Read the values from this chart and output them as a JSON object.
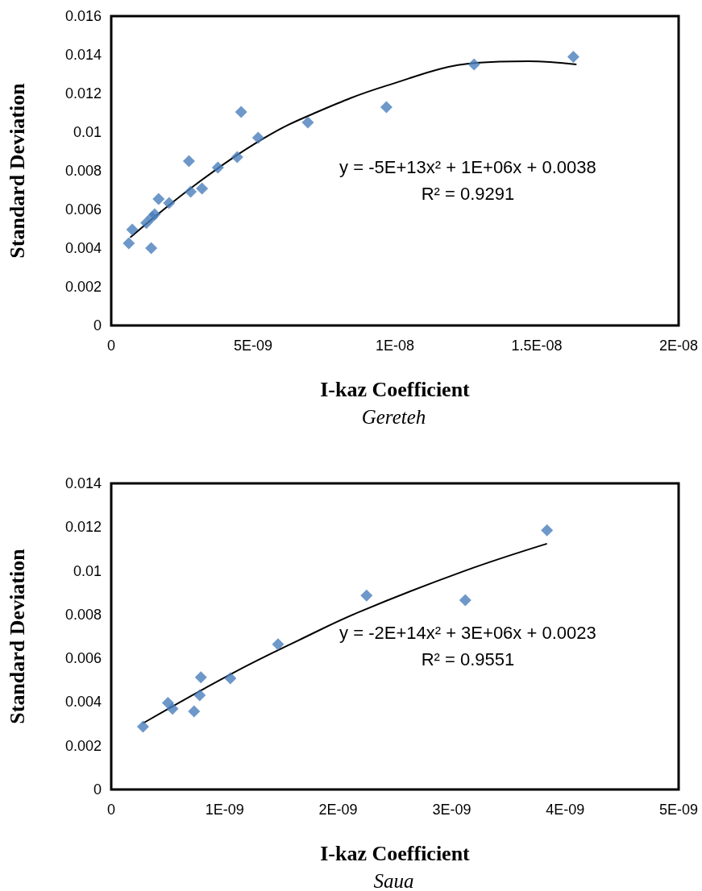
{
  "chart_data": [
    {
      "type": "scatter",
      "xlabel": "I-kaz Coefficient",
      "ylabel": "Standard Deviation",
      "subtitle": "Gereteh",
      "marker": "diamond",
      "grid": false,
      "annotations": [
        "y = -5E+13x² + 1E+06x + 0.0038",
        "R² = 0.9291"
      ],
      "xlim": [
        0,
        2e-08
      ],
      "xticks": [
        0,
        {
          "value": 5e-09,
          "label": "5E-09"
        },
        {
          "value": 1e-08,
          "label": "1E-08"
        },
        {
          "value": 1.5e-08,
          "label": "1.5E-08"
        },
        {
          "value": 2e-08,
          "label": "2E-08"
        }
      ],
      "ylim": [
        0,
        0.016
      ],
      "yticks": [
        0,
        0.002,
        0.004,
        0.006,
        0.008,
        0.01,
        0.012,
        0.014,
        0.016
      ],
      "series": [
        {
          "color": "#4a7ebb",
          "x": [
            6.2e-10,
            7.4e-10,
            1.24e-09,
            1.44e-09,
            1.53e-09,
            1.41e-09,
            1.67e-09,
            2.04e-09,
            2.74e-09,
            2.8e-09,
            3.2e-09,
            3.76e-09,
            4.44e-09,
            4.58e-09,
            5.18e-09,
            6.93e-09,
            9.7e-09,
            1.279e-08,
            1.629e-08
          ],
          "values": [
            0.00425,
            0.00496,
            0.0053,
            0.0056,
            0.00575,
            0.004,
            0.00654,
            0.00633,
            0.0085,
            0.00692,
            0.00708,
            0.00817,
            0.00871,
            0.01104,
            0.00971,
            0.0105,
            0.01129,
            0.0135,
            0.0139
          ]
        },
        {
          "type": "line",
          "marker": "none",
          "color": "#000000",
          "x": [
            6.7e-10,
            2.96e-09,
            5.4e-09,
            7.13e-09,
            9.7e-09,
            1.287e-08,
            1.47e-08,
            1.64e-08
          ],
          "values": [
            0.00455,
            0.00727,
            0.0097,
            0.01096,
            0.0124,
            0.01358,
            0.01367,
            0.0135
          ]
        }
      ]
    },
    {
      "type": "scatter",
      "xlabel": "I-kaz Coefficient",
      "ylabel": "Standard Deviation",
      "subtitle": "Saua",
      "marker": "diamond",
      "grid": false,
      "annotations": [
        "y = -2E+14x² + 3E+06x + 0.0023",
        "R² = 0.9551"
      ],
      "xlim": [
        0,
        5e-09
      ],
      "xticks": [
        0,
        {
          "value": 1e-09,
          "label": "1E-09"
        },
        {
          "value": 2e-09,
          "label": "2E-09"
        },
        {
          "value": 3e-09,
          "label": "3E-09"
        },
        {
          "value": 4e-09,
          "label": "4E-09"
        },
        {
          "value": 5e-09,
          "label": "5E-09"
        }
      ],
      "ylim": [
        0,
        0.014
      ],
      "yticks": [
        0,
        0.002,
        0.004,
        0.006,
        0.008,
        0.01,
        0.012,
        0.014
      ],
      "series": [
        {
          "color": "#4a7ebb",
          "x": [
            2.8e-10,
            5e-10,
            5.4e-10,
            7.3e-10,
            7.8e-10,
            7.9e-10,
            1.05e-09,
            1.47e-09,
            2.25e-09,
            3.12e-09,
            3.84e-09
          ],
          "values": [
            0.00287,
            0.00396,
            0.00369,
            0.00357,
            0.00431,
            0.00513,
            0.00508,
            0.00664,
            0.00887,
            0.00866,
            0.01185
          ]
        },
        {
          "type": "line",
          "marker": "none",
          "color": "#000000",
          "x": [
            2.8e-10,
            1.07e-09,
            1.65e-09,
            2.19e-09,
            3.1e-09,
            3.84e-09
          ],
          "values": [
            0.00303,
            0.00532,
            0.00682,
            0.00813,
            0.00997,
            0.01124
          ]
        }
      ]
    }
  ]
}
